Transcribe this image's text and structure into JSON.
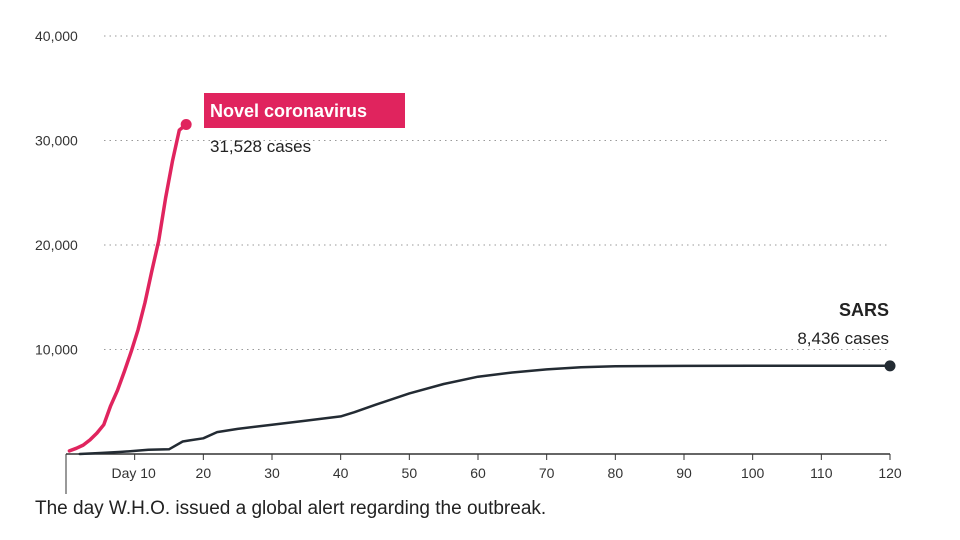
{
  "chart_data": {
    "type": "line",
    "title": "",
    "xlabel": "",
    "ylabel": "",
    "xlim": [
      0,
      120
    ],
    "ylim": [
      0,
      40000
    ],
    "grid": true,
    "y_ticks": [
      {
        "value": 10000,
        "label": "10,000"
      },
      {
        "value": 20000,
        "label": "20,000"
      },
      {
        "value": 30000,
        "label": "30,000"
      },
      {
        "value": 40000,
        "label": "40,000"
      }
    ],
    "x_ticks": [
      {
        "value": 10,
        "label": "Day 10"
      },
      {
        "value": 20,
        "label": "20"
      },
      {
        "value": 30,
        "label": "30"
      },
      {
        "value": 40,
        "label": "40"
      },
      {
        "value": 50,
        "label": "50"
      },
      {
        "value": 60,
        "label": "60"
      },
      {
        "value": 70,
        "label": "70"
      },
      {
        "value": 80,
        "label": "80"
      },
      {
        "value": 90,
        "label": "90"
      },
      {
        "value": 100,
        "label": "100"
      },
      {
        "value": 110,
        "label": "110"
      },
      {
        "value": 120,
        "label": "120"
      }
    ],
    "series": [
      {
        "name": "Novel coronavirus",
        "label": "31,528 cases",
        "color": "#e0245e",
        "x": [
          0.5,
          1.5,
          2.5,
          3.5,
          4.5,
          5.5,
          6.5,
          7.5,
          8.5,
          9.5,
          10.5,
          11.5,
          12.5,
          13.5,
          14.5,
          15.5,
          16.5,
          17.5
        ],
        "y": [
          300,
          550,
          850,
          1350,
          2000,
          2800,
          4600,
          6100,
          7900,
          9800,
          11900,
          14500,
          17500,
          20400,
          24500,
          28000,
          31000,
          31528
        ]
      },
      {
        "name": "SARS",
        "label": "8,436 cases",
        "color": "#232b33",
        "x": [
          2,
          5,
          8,
          10,
          12,
          15,
          17,
          18,
          20,
          22,
          25,
          30,
          35,
          40,
          42,
          45,
          50,
          55,
          60,
          65,
          70,
          75,
          80,
          90,
          100,
          110,
          120
        ],
        "y": [
          0,
          100,
          200,
          300,
          400,
          450,
          1200,
          1300,
          1500,
          2100,
          2400,
          2800,
          3200,
          3600,
          4000,
          4700,
          5800,
          6700,
          7400,
          7800,
          8100,
          8300,
          8400,
          8430,
          8436,
          8436,
          8436
        ]
      }
    ]
  },
  "footnote": "The day W.H.O. issued a global alert regarding the outbreak."
}
